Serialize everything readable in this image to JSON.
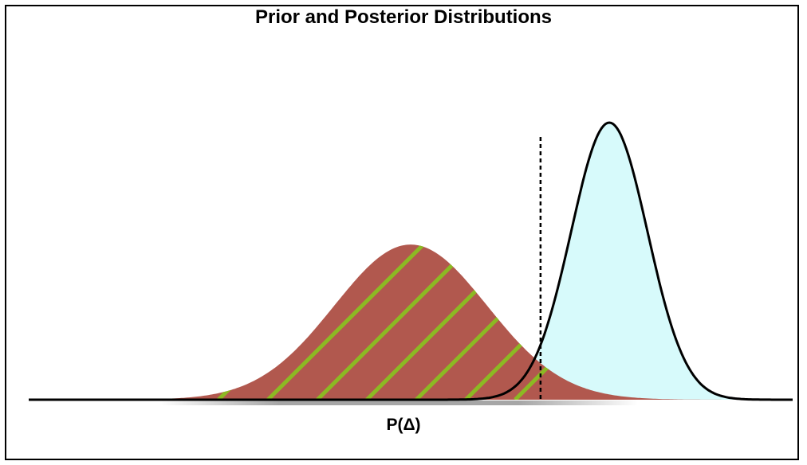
{
  "title": "Prior and Posterior Distributions",
  "xlabel": "P(Δ)",
  "colors": {
    "prior_fill": "#b1584e",
    "posterior_fill": "#d7fafb",
    "hatch": "#8cb923",
    "axis": "#000000"
  },
  "chart_data": {
    "type": "area",
    "title": "Prior and Posterior Distributions",
    "xlabel": "P(Δ)",
    "ylabel": "",
    "grid": false,
    "legend": "none",
    "series": [
      {
        "distribution": "normal",
        "mean": 0.5,
        "sd": 0.1,
        "peak_height": 0.56,
        "fill": "#b1584e",
        "hatched": true,
        "hatch_color": "#8cb923"
      },
      {
        "distribution": "normal",
        "mean": 0.76,
        "sd": 0.05,
        "peak_height": 1.0,
        "fill": "#d7fafb",
        "outline": "#000000"
      }
    ],
    "reference_line": {
      "x": 0.67,
      "style": "dashed"
    }
  }
}
